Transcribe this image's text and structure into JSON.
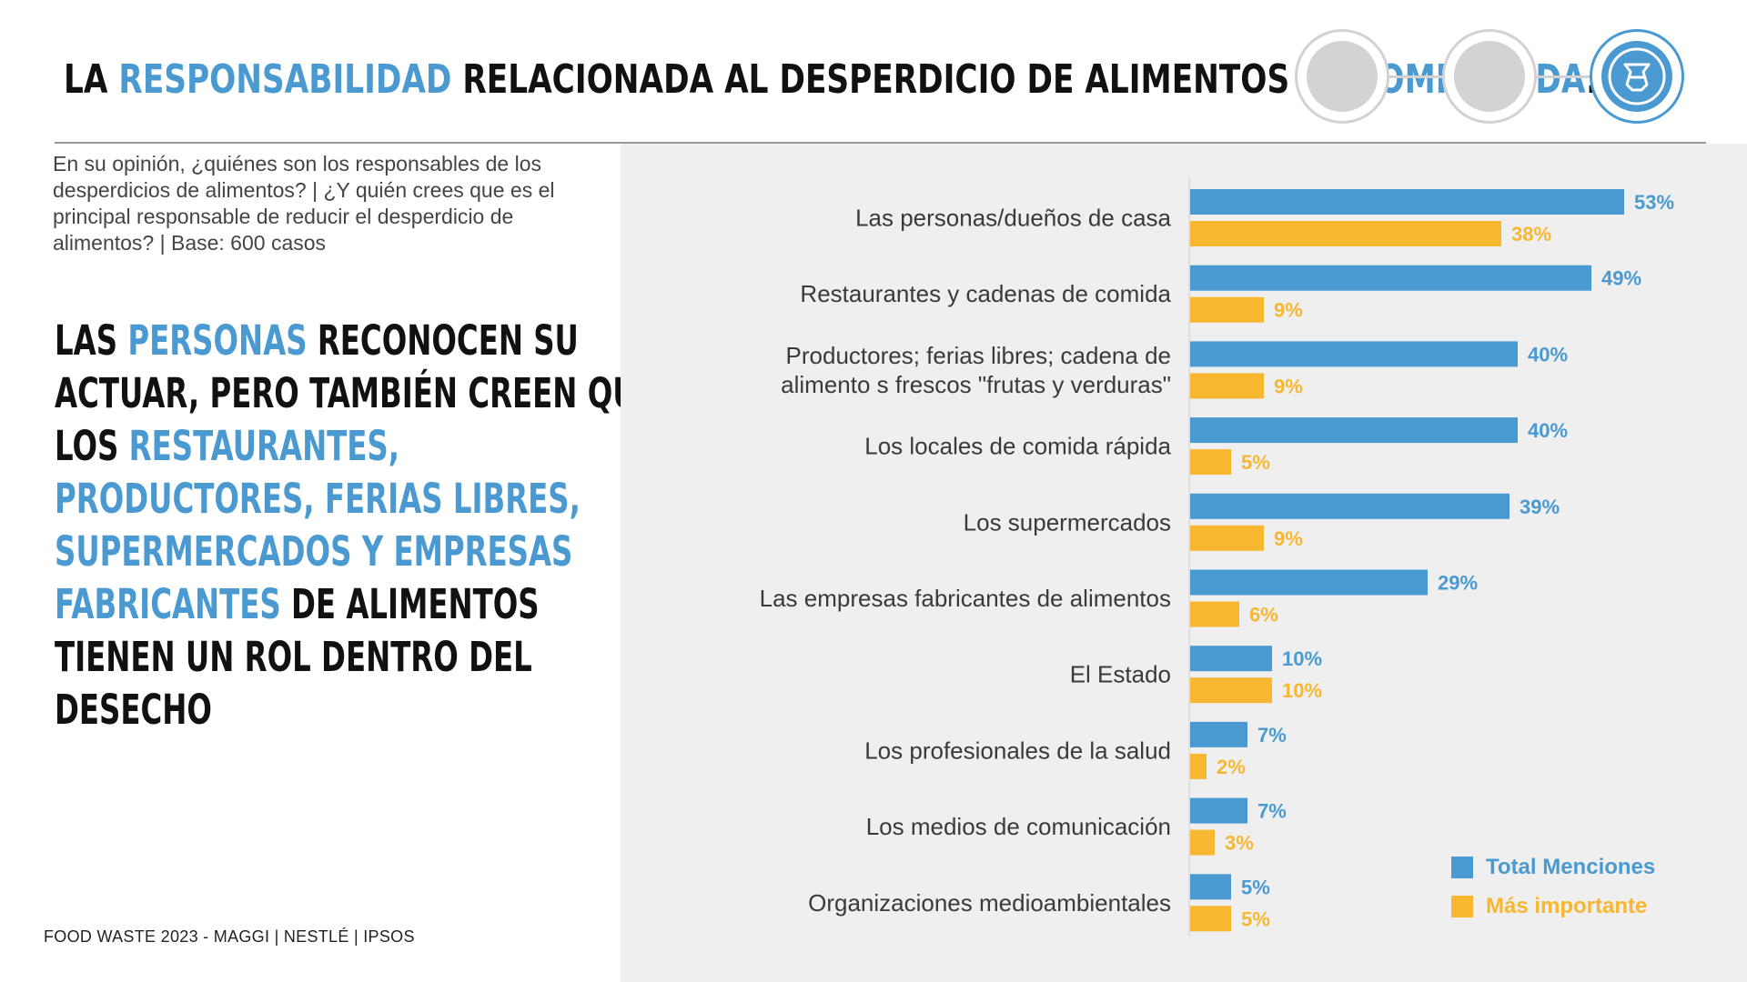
{
  "header": {
    "title_parts": [
      {
        "text": "LA ",
        "accent": false
      },
      {
        "text": "RESPONSABILIDAD",
        "accent": true
      },
      {
        "text": " RELACIONADA AL DESPERDICIO DE ALIMENTOS ES ",
        "accent": false
      },
      {
        "text": "COMPARTIDA",
        "accent": true
      },
      {
        "text": ".",
        "accent": false
      }
    ],
    "steps": [
      {
        "state": "inactive",
        "icon": "empty-circle-icon"
      },
      {
        "state": "inactive",
        "icon": "empty-circle-icon"
      },
      {
        "state": "active",
        "icon": "tied-bag-icon"
      }
    ]
  },
  "question": "En su opinión, ¿quiénes son los responsables de los desperdicios de alimentos?  | ¿Y quién crees que es el principal responsable de reducir el desperdicio de alimentos? | Base: 600 casos",
  "headline": {
    "lines": [
      [
        {
          "text": " LAS ",
          "accent": false
        },
        {
          "text": "PERSONAS",
          "accent": true
        },
        {
          "text": " RECONOCEN SU",
          "accent": false
        }
      ],
      [
        {
          "text": "ACTUAR, PERO TAMBIÉN CREEN QUE",
          "accent": false
        }
      ],
      [
        {
          "text": "LOS ",
          "accent": false
        },
        {
          "text": "RESTAURANTES,",
          "accent": true
        }
      ],
      [
        {
          "text": "PRODUCTORES, FERIAS LIBRES,",
          "accent": true
        }
      ],
      [
        {
          "text": "SUPERMERCADOS Y EMPRESAS",
          "accent": true
        }
      ],
      [
        {
          "text": "FABRICANTES",
          "accent": true
        },
        {
          "text": " DE ALIMENTOS",
          "accent": false
        }
      ],
      [
        {
          "text": "TIENEN UN ROL DENTRO DEL",
          "accent": false
        }
      ],
      [
        {
          "text": "DESECHO",
          "accent": false
        }
      ]
    ]
  },
  "footer": "FOOD WASTE 2023 - MAGGI | NESTLÉ | IPSOS",
  "colors": {
    "accent": "#4a9ad1",
    "series_total": "#4a9ad1",
    "series_important": "#f7b731"
  },
  "chart_data": {
    "type": "bar",
    "orientation": "horizontal",
    "categories": [
      [
        "Las personas/dueños de casa"
      ],
      [
        "Restaurantes y cadenas de comida"
      ],
      [
        "Productores; ferias libres; cadena de",
        "alimento s frescos \"frutas y verduras\""
      ],
      [
        "Los locales de comida rápida"
      ],
      [
        "Los supermercados"
      ],
      [
        "Las empresas fabricantes de alimentos"
      ],
      [
        "El Estado"
      ],
      [
        "Los profesionales de la salud"
      ],
      [
        "Los medios de comunicación"
      ],
      [
        "Organizaciones medioambientales"
      ]
    ],
    "series": [
      {
        "name": "Total Menciones",
        "color": "#4a9ad1",
        "values": [
          53,
          49,
          40,
          40,
          39,
          29,
          10,
          7,
          7,
          5
        ]
      },
      {
        "name": "Más importante",
        "color": "#f7b731",
        "values": [
          38,
          9,
          9,
          5,
          9,
          6,
          10,
          2,
          3,
          5
        ]
      }
    ],
    "value_suffix": "%",
    "xlim": [
      0,
      60
    ],
    "grid": false,
    "legend_position": "bottom-right"
  }
}
